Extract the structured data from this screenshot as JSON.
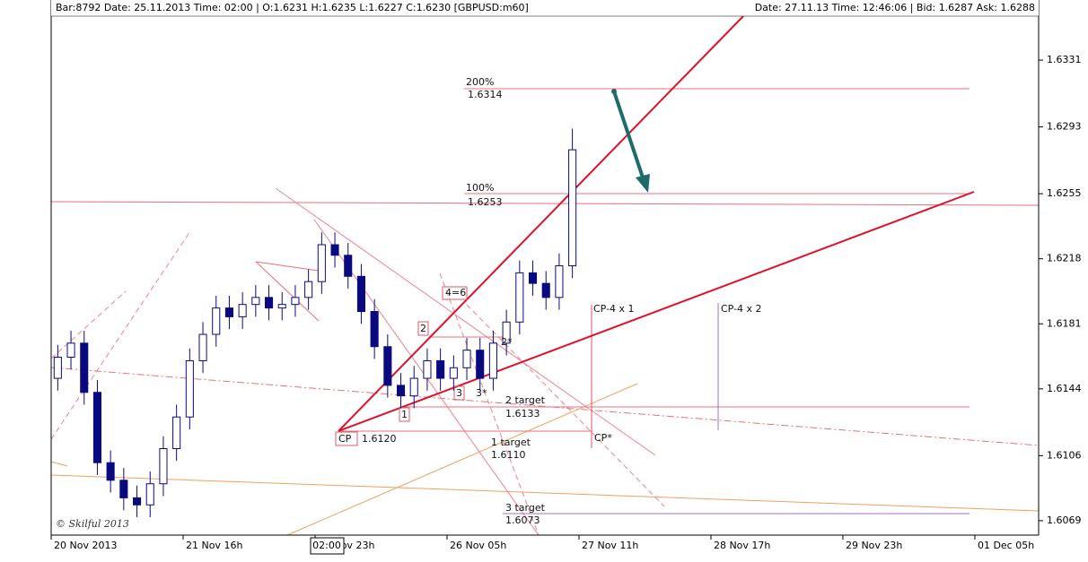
{
  "header": {
    "left": "Bar:8792  Date: 25.11.2013  Time: 02:00  | O:1.6231 H:1.6235 L:1.6227 C:1.6230   [GBPUSD:m60]",
    "right": "Date: 27.11.13 Time: 12:46:06 | Bid: 1.6287 Ask: 1.6288"
  },
  "cursor_label": "02:00",
  "chart_data": {
    "type": "candlestick",
    "up_color": "#ffffff",
    "down_color": "#0a0a80",
    "outline_color": "#0a0a80",
    "x": [
      1.5,
      4.5,
      7.5,
      10.5,
      13.5,
      16.5,
      19.5,
      22.5,
      25.5,
      28.5,
      31.5,
      34.5,
      37.5,
      40.5,
      43.5,
      46.5,
      49.5,
      52.5,
      55.5,
      58.5,
      61.5,
      64.5,
      67.5,
      70.5,
      73.5,
      76.5,
      79.5,
      82.5,
      85.5,
      88.5,
      91.5,
      94.5,
      97.5,
      100.5,
      103.5,
      106.5,
      109.5,
      112.5,
      115.5,
      118.5
    ],
    "open": [
      1.615,
      1.6162,
      1.617,
      1.6142,
      1.6102,
      1.6092,
      1.6082,
      1.6078,
      1.609,
      1.611,
      1.6128,
      1.616,
      1.6175,
      1.619,
      1.6185,
      1.6192,
      1.6196,
      1.619,
      1.6192,
      1.6196,
      1.6205,
      1.6226,
      1.622,
      1.6208,
      1.6188,
      1.6168,
      1.6146,
      1.614,
      1.615,
      1.616,
      1.615,
      1.6156,
      1.6166,
      1.615,
      1.617,
      1.6182,
      1.621,
      1.6204,
      1.6196,
      1.6214
    ],
    "high": [
      1.6169,
      1.6177,
      1.6177,
      1.6149,
      1.6109,
      1.6099,
      1.6089,
      1.6097,
      1.6117,
      1.6135,
      1.6167,
      1.6182,
      1.6197,
      1.6197,
      1.6199,
      1.6203,
      1.6203,
      1.6199,
      1.6203,
      1.6212,
      1.6233,
      1.6233,
      1.6227,
      1.6215,
      1.6195,
      1.6175,
      1.6153,
      1.6157,
      1.6167,
      1.6167,
      1.6163,
      1.6173,
      1.6173,
      1.6177,
      1.6189,
      1.6217,
      1.6217,
      1.6211,
      1.6221,
      1.6292
    ],
    "low": [
      1.6143,
      1.6155,
      1.6135,
      1.6095,
      1.6085,
      1.6075,
      1.6071,
      1.6071,
      1.6083,
      1.6103,
      1.6121,
      1.6153,
      1.6168,
      1.6178,
      1.6178,
      1.6185,
      1.6183,
      1.6183,
      1.6185,
      1.6189,
      1.6198,
      1.6213,
      1.6201,
      1.6181,
      1.6161,
      1.6139,
      1.6133,
      1.6133,
      1.6143,
      1.6143,
      1.6143,
      1.6149,
      1.6143,
      1.6143,
      1.6163,
      1.6175,
      1.6197,
      1.6189,
      1.6189,
      1.6207
    ],
    "close": [
      1.6162,
      1.617,
      1.6142,
      1.6102,
      1.6092,
      1.6082,
      1.6078,
      1.609,
      1.611,
      1.6128,
      1.616,
      1.6175,
      1.619,
      1.6185,
      1.6192,
      1.6196,
      1.619,
      1.6192,
      1.6196,
      1.6205,
      1.6226,
      1.622,
      1.6208,
      1.6188,
      1.6168,
      1.6146,
      1.614,
      1.615,
      1.616,
      1.615,
      1.6156,
      1.6166,
      1.615,
      1.617,
      1.6182,
      1.621,
      1.6204,
      1.6196,
      1.6214,
      1.628
    ],
    "xlim": [
      0,
      224.5
    ],
    "xticks": [
      {
        "value": 0,
        "label": "20 Nov 2013"
      },
      {
        "value": 30,
        "label": "21 Nov 16h"
      },
      {
        "value": 60,
        "label": "22 Nov 23h"
      },
      {
        "value": 90,
        "label": "26 Nov 05h"
      },
      {
        "value": 120,
        "label": "27 Nov 11h"
      },
      {
        "value": 150,
        "label": "28 Nov 17h"
      },
      {
        "value": 180,
        "label": "29 Nov 23h"
      },
      {
        "value": 210,
        "label": "01 Dec 05h"
      }
    ],
    "ylim": [
      1.60608,
      1.63652
    ],
    "yticks": [
      1.6331,
      1.6293,
      1.6255,
      1.6218,
      1.6181,
      1.6144,
      1.6106,
      1.6069
    ],
    "grid": false,
    "annotations": [
      "200%",
      "1.6314",
      "100%",
      "1.6253",
      "4=6",
      "2",
      "2*",
      "3",
      "3*",
      "1",
      "CP",
      "1.6120",
      "2 target",
      "1.6133",
      "CP*",
      "1 target",
      "1.6110",
      "3 target",
      "1.6073",
      "CP-4 x 1",
      "CP-4 x 2",
      "© Skilful 2013"
    ]
  }
}
